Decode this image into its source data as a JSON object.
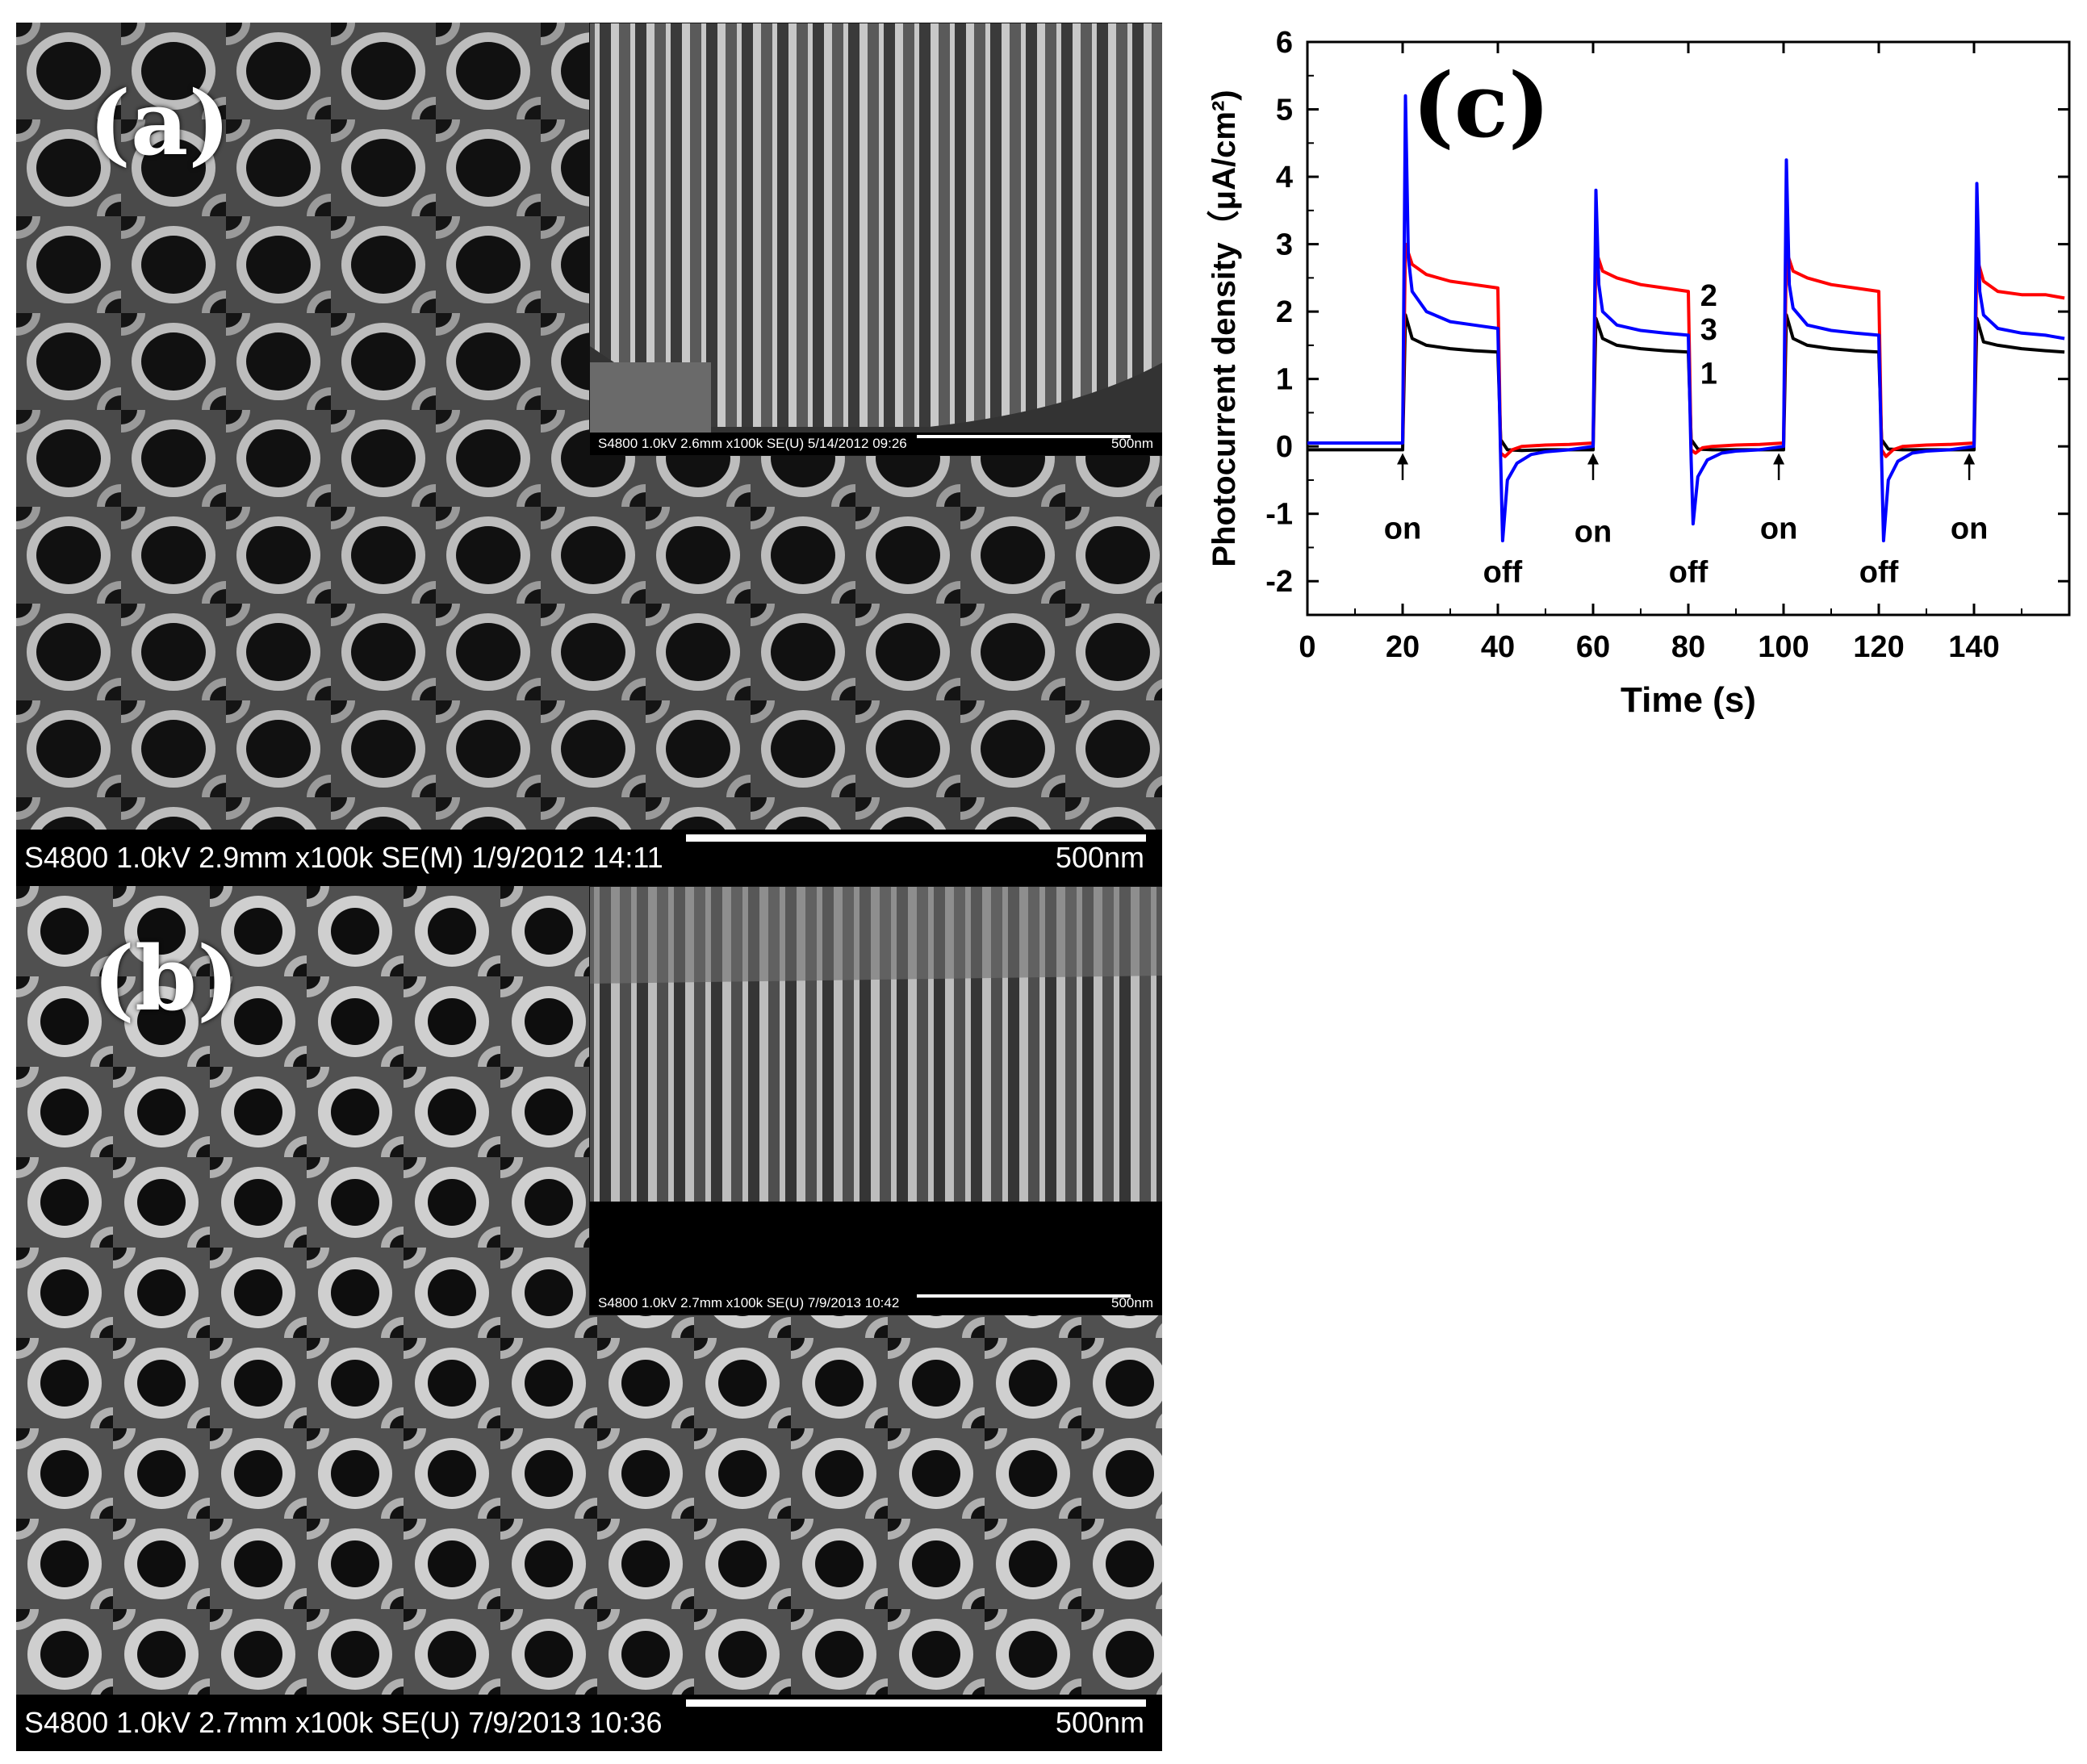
{
  "panels": {
    "a": {
      "label": "(a)",
      "info": "S4800 1.0kV 2.9mm x100k SE(M) 1/9/2012 14:11",
      "scale": "500nm",
      "inset": {
        "info": "S4800 1.0kV 2.6mm x100k SE(U) 5/14/2012 09:26",
        "scale": "500nm"
      }
    },
    "b": {
      "label": "(b)",
      "info": "S4800 1.0kV 2.7mm x100k SE(U) 7/9/2013 10:36",
      "scale": "500nm",
      "inset": {
        "info": "S4800 1.0kV 2.7mm x100k SE(U) 7/9/2013 10:42",
        "scale": "500nm"
      }
    }
  },
  "chart_data": {
    "type": "line",
    "panel_label": "(c)",
    "xlabel": "Time (s)",
    "ylabel": "Photocurrent density（μA/cm²)",
    "xlim": [
      0,
      160
    ],
    "ylim": [
      -2.5,
      6
    ],
    "xticks": [
      0,
      20,
      40,
      60,
      80,
      100,
      120,
      140
    ],
    "yticks": [
      -2,
      -1,
      0,
      1,
      2,
      3,
      4,
      5,
      6
    ],
    "grid": false,
    "series": [
      {
        "name": "1",
        "color": "#000000",
        "x": [
          0,
          20,
          20.6,
          22,
          25,
          30,
          35,
          40,
          40.6,
          42,
          45,
          50,
          55,
          60,
          60.6,
          62,
          65,
          70,
          75,
          80,
          80.6,
          82,
          85,
          90,
          95,
          100,
          100.6,
          102,
          105,
          110,
          115,
          120,
          120.6,
          122,
          125,
          130,
          135,
          140,
          140.6,
          142,
          145,
          150,
          155,
          159
        ],
        "y": [
          -0.05,
          -0.05,
          1.95,
          1.6,
          1.5,
          1.45,
          1.42,
          1.4,
          0.1,
          -0.05,
          -0.06,
          -0.05,
          -0.05,
          -0.05,
          1.9,
          1.6,
          1.5,
          1.45,
          1.42,
          1.4,
          0.1,
          -0.04,
          -0.05,
          -0.05,
          -0.05,
          -0.05,
          1.95,
          1.6,
          1.5,
          1.45,
          1.42,
          1.4,
          0.1,
          -0.04,
          -0.05,
          -0.05,
          -0.05,
          -0.05,
          1.9,
          1.55,
          1.5,
          1.45,
          1.42,
          1.4
        ]
      },
      {
        "name": "2",
        "color": "#ff0000",
        "x": [
          0,
          20,
          20.6,
          22,
          25,
          30,
          35,
          40,
          40.6,
          41.5,
          43,
          45,
          50,
          55,
          60,
          60.6,
          62,
          65,
          70,
          75,
          80,
          80.6,
          81.5,
          83,
          85,
          90,
          95,
          100,
          100.6,
          102,
          105,
          110,
          115,
          120,
          120.6,
          121.5,
          123,
          125,
          130,
          135,
          140,
          140.6,
          142,
          145,
          150,
          155,
          159
        ],
        "y": [
          0.05,
          0.05,
          3.0,
          2.7,
          2.55,
          2.45,
          2.4,
          2.35,
          -0.1,
          -0.15,
          -0.05,
          0.0,
          0.02,
          0.03,
          0.05,
          2.9,
          2.6,
          2.5,
          2.4,
          2.35,
          2.3,
          -0.05,
          -0.1,
          -0.02,
          0.0,
          0.02,
          0.03,
          0.05,
          2.9,
          2.6,
          2.5,
          2.4,
          2.35,
          2.3,
          -0.05,
          -0.15,
          -0.05,
          0.0,
          0.02,
          0.03,
          0.05,
          2.8,
          2.45,
          2.3,
          2.25,
          2.25,
          2.2
        ]
      },
      {
        "name": "3",
        "color": "#0000ff",
        "x": [
          0,
          20,
          20.6,
          21.2,
          22,
          25,
          30,
          35,
          40,
          40.6,
          41,
          42,
          44,
          47,
          50,
          55,
          60,
          60.6,
          61.2,
          62,
          65,
          70,
          75,
          80,
          80.6,
          81,
          82,
          84,
          87,
          90,
          95,
          100,
          100.6,
          101.2,
          102,
          105,
          110,
          115,
          120,
          120.6,
          121,
          122,
          124,
          127,
          130,
          135,
          140,
          140.6,
          141.2,
          142,
          145,
          150,
          155,
          159
        ],
        "y": [
          0.05,
          0.05,
          5.2,
          2.8,
          2.3,
          2.0,
          1.85,
          1.8,
          1.75,
          -0.2,
          -1.4,
          -0.5,
          -0.25,
          -0.12,
          -0.08,
          -0.05,
          0.0,
          3.8,
          2.4,
          2.0,
          1.8,
          1.72,
          1.68,
          1.65,
          -0.2,
          -1.15,
          -0.45,
          -0.2,
          -0.1,
          -0.07,
          -0.05,
          0.0,
          4.25,
          2.4,
          2.05,
          1.8,
          1.72,
          1.68,
          1.65,
          -0.2,
          -1.4,
          -0.5,
          -0.22,
          -0.1,
          -0.07,
          -0.05,
          0.0,
          3.9,
          2.3,
          1.95,
          1.75,
          1.68,
          1.65,
          1.6
        ]
      }
    ],
    "series_labels": [
      {
        "text": "2",
        "x": 82.5,
        "y": 2.25
      },
      {
        "text": "3",
        "x": 82.5,
        "y": 1.75
      },
      {
        "text": "1",
        "x": 82.5,
        "y": 1.1
      }
    ],
    "annotations": [
      {
        "text": "on",
        "x": 20,
        "y": -1.2,
        "arrow_from": -0.5,
        "arrow_to": -0.1
      },
      {
        "text": "off",
        "x": 41,
        "y": -1.85
      },
      {
        "text": "on",
        "x": 60,
        "y": -1.25,
        "arrow_from": -0.5,
        "arrow_to": -0.1
      },
      {
        "text": "off",
        "x": 80,
        "y": -1.85
      },
      {
        "text": "on",
        "x": 99,
        "y": -1.2,
        "arrow_from": -0.5,
        "arrow_to": -0.1
      },
      {
        "text": "off",
        "x": 120,
        "y": -1.85
      },
      {
        "text": "on",
        "x": 139,
        "y": -1.2,
        "arrow_from": -0.5,
        "arrow_to": -0.1
      }
    ]
  }
}
